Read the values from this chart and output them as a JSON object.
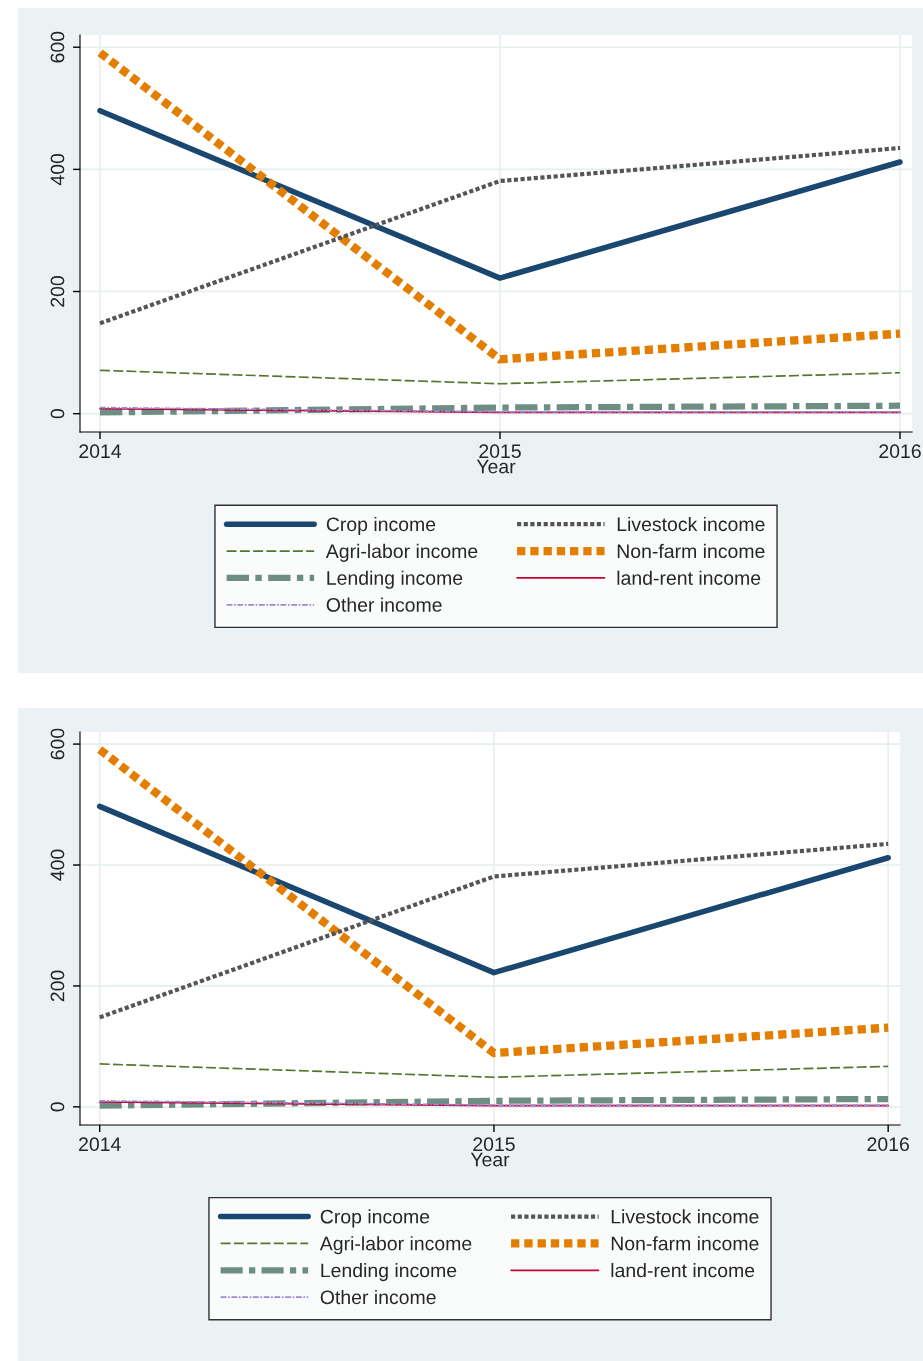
{
  "chart_data": [
    {
      "type": "line",
      "xlabel": "Year",
      "x": [
        2014,
        2015,
        2016
      ],
      "xlim": [
        2013.95,
        2016.03
      ],
      "xticks": [
        2014,
        2015,
        2016
      ],
      "ylim": [
        -30,
        620
      ],
      "yticks": [
        0,
        200,
        400,
        600
      ],
      "grid": true,
      "legend": "bottom",
      "series": [
        {
          "name": "Crop income",
          "color": "#1a476f",
          "line_style": "solid",
          "values": [
            496,
            222,
            412
          ]
        },
        {
          "name": "Agri-labor income",
          "color": "#55752f",
          "line_style": "dashed",
          "values": [
            71,
            49,
            67
          ]
        },
        {
          "name": "Lending income",
          "color": "#6e8e84",
          "line_style": "dashdot",
          "values": [
            2,
            10,
            13
          ]
        },
        {
          "name": "Other income",
          "color": "#9c88d3",
          "line_style": "dashdot",
          "values": [
            10,
            3,
            3
          ]
        },
        {
          "name": "Livestock income",
          "color": "#555555",
          "line_style": "dotted",
          "values": [
            148,
            381,
            435
          ]
        },
        {
          "name": "Non-farm income",
          "color": "#e37e00",
          "line_style": "dotted",
          "values": [
            591,
            89,
            131
          ]
        },
        {
          "name": "land-rent income",
          "color": "#c10534",
          "line_style": "solid",
          "values": [
            8,
            2,
            2
          ]
        }
      ]
    },
    {
      "type": "line",
      "xlabel": "Year",
      "x": [
        2014,
        2015,
        2016
      ],
      "xlim": [
        2013.95,
        2016.03
      ],
      "xticks": [
        2014,
        2015,
        2016
      ],
      "ylim": [
        -30,
        620
      ],
      "yticks": [
        0,
        200,
        400,
        600
      ],
      "grid": true,
      "legend": "bottom",
      "series": [
        {
          "name": "Crop income",
          "color": "#1a476f",
          "line_style": "solid",
          "values": [
            497,
            222,
            412
          ]
        },
        {
          "name": "Agri-labor income",
          "color": "#55752f",
          "line_style": "dashed",
          "values": [
            71,
            49,
            67
          ]
        },
        {
          "name": "Lending income",
          "color": "#6e8e84",
          "line_style": "dashdot",
          "values": [
            2,
            10,
            13
          ]
        },
        {
          "name": "Other income",
          "color": "#9c88d3",
          "line_style": "dashdot",
          "values": [
            10,
            3,
            3
          ]
        },
        {
          "name": "Livestock income",
          "color": "#555555",
          "line_style": "dotted",
          "values": [
            148,
            381,
            435
          ]
        },
        {
          "name": "Non-farm income",
          "color": "#e37e00",
          "line_style": "dotted",
          "values": [
            591,
            89,
            131
          ]
        },
        {
          "name": "land-rent income",
          "color": "#c10534",
          "line_style": "solid",
          "values": [
            8,
            2,
            2
          ]
        }
      ]
    }
  ]
}
